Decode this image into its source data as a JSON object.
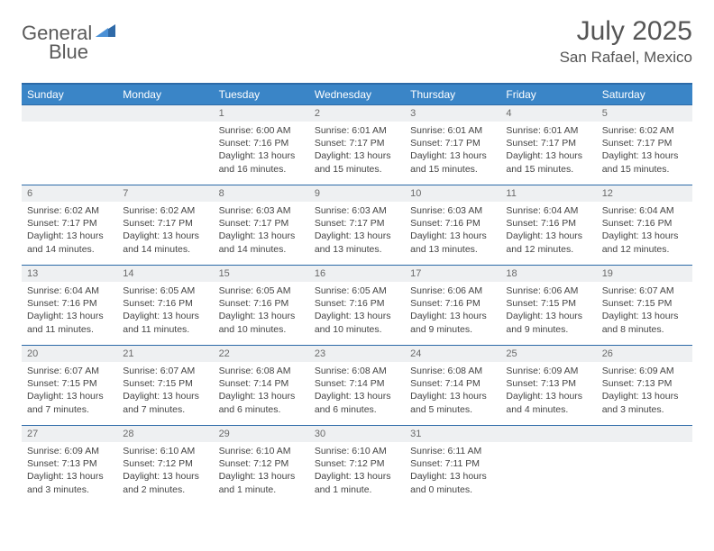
{
  "brand": {
    "part1": "General",
    "part2": "Blue"
  },
  "title": "July 2025",
  "location": "San Rafael, Mexico",
  "colors": {
    "header_bar": "#3a85c7",
    "rule": "#2c6aa8",
    "daynum_bg": "#eef0f2",
    "text": "#444444",
    "brand_gray": "#5a5a5a",
    "brand_blue": "#3a78b5"
  },
  "fonts": {
    "title_pt": 30,
    "location_pt": 17,
    "dow_pt": 12,
    "cell_pt": 10.5
  },
  "days_of_week": [
    "Sunday",
    "Monday",
    "Tuesday",
    "Wednesday",
    "Thursday",
    "Friday",
    "Saturday"
  ],
  "weeks": [
    [
      null,
      null,
      {
        "n": "1",
        "sunrise": "Sunrise: 6:00 AM",
        "sunset": "Sunset: 7:16 PM",
        "day": "Daylight: 13 hours and 16 minutes."
      },
      {
        "n": "2",
        "sunrise": "Sunrise: 6:01 AM",
        "sunset": "Sunset: 7:17 PM",
        "day": "Daylight: 13 hours and 15 minutes."
      },
      {
        "n": "3",
        "sunrise": "Sunrise: 6:01 AM",
        "sunset": "Sunset: 7:17 PM",
        "day": "Daylight: 13 hours and 15 minutes."
      },
      {
        "n": "4",
        "sunrise": "Sunrise: 6:01 AM",
        "sunset": "Sunset: 7:17 PM",
        "day": "Daylight: 13 hours and 15 minutes."
      },
      {
        "n": "5",
        "sunrise": "Sunrise: 6:02 AM",
        "sunset": "Sunset: 7:17 PM",
        "day": "Daylight: 13 hours and 15 minutes."
      }
    ],
    [
      {
        "n": "6",
        "sunrise": "Sunrise: 6:02 AM",
        "sunset": "Sunset: 7:17 PM",
        "day": "Daylight: 13 hours and 14 minutes."
      },
      {
        "n": "7",
        "sunrise": "Sunrise: 6:02 AM",
        "sunset": "Sunset: 7:17 PM",
        "day": "Daylight: 13 hours and 14 minutes."
      },
      {
        "n": "8",
        "sunrise": "Sunrise: 6:03 AM",
        "sunset": "Sunset: 7:17 PM",
        "day": "Daylight: 13 hours and 14 minutes."
      },
      {
        "n": "9",
        "sunrise": "Sunrise: 6:03 AM",
        "sunset": "Sunset: 7:17 PM",
        "day": "Daylight: 13 hours and 13 minutes."
      },
      {
        "n": "10",
        "sunrise": "Sunrise: 6:03 AM",
        "sunset": "Sunset: 7:16 PM",
        "day": "Daylight: 13 hours and 13 minutes."
      },
      {
        "n": "11",
        "sunrise": "Sunrise: 6:04 AM",
        "sunset": "Sunset: 7:16 PM",
        "day": "Daylight: 13 hours and 12 minutes."
      },
      {
        "n": "12",
        "sunrise": "Sunrise: 6:04 AM",
        "sunset": "Sunset: 7:16 PM",
        "day": "Daylight: 13 hours and 12 minutes."
      }
    ],
    [
      {
        "n": "13",
        "sunrise": "Sunrise: 6:04 AM",
        "sunset": "Sunset: 7:16 PM",
        "day": "Daylight: 13 hours and 11 minutes."
      },
      {
        "n": "14",
        "sunrise": "Sunrise: 6:05 AM",
        "sunset": "Sunset: 7:16 PM",
        "day": "Daylight: 13 hours and 11 minutes."
      },
      {
        "n": "15",
        "sunrise": "Sunrise: 6:05 AM",
        "sunset": "Sunset: 7:16 PM",
        "day": "Daylight: 13 hours and 10 minutes."
      },
      {
        "n": "16",
        "sunrise": "Sunrise: 6:05 AM",
        "sunset": "Sunset: 7:16 PM",
        "day": "Daylight: 13 hours and 10 minutes."
      },
      {
        "n": "17",
        "sunrise": "Sunrise: 6:06 AM",
        "sunset": "Sunset: 7:16 PM",
        "day": "Daylight: 13 hours and 9 minutes."
      },
      {
        "n": "18",
        "sunrise": "Sunrise: 6:06 AM",
        "sunset": "Sunset: 7:15 PM",
        "day": "Daylight: 13 hours and 9 minutes."
      },
      {
        "n": "19",
        "sunrise": "Sunrise: 6:07 AM",
        "sunset": "Sunset: 7:15 PM",
        "day": "Daylight: 13 hours and 8 minutes."
      }
    ],
    [
      {
        "n": "20",
        "sunrise": "Sunrise: 6:07 AM",
        "sunset": "Sunset: 7:15 PM",
        "day": "Daylight: 13 hours and 7 minutes."
      },
      {
        "n": "21",
        "sunrise": "Sunrise: 6:07 AM",
        "sunset": "Sunset: 7:15 PM",
        "day": "Daylight: 13 hours and 7 minutes."
      },
      {
        "n": "22",
        "sunrise": "Sunrise: 6:08 AM",
        "sunset": "Sunset: 7:14 PM",
        "day": "Daylight: 13 hours and 6 minutes."
      },
      {
        "n": "23",
        "sunrise": "Sunrise: 6:08 AM",
        "sunset": "Sunset: 7:14 PM",
        "day": "Daylight: 13 hours and 6 minutes."
      },
      {
        "n": "24",
        "sunrise": "Sunrise: 6:08 AM",
        "sunset": "Sunset: 7:14 PM",
        "day": "Daylight: 13 hours and 5 minutes."
      },
      {
        "n": "25",
        "sunrise": "Sunrise: 6:09 AM",
        "sunset": "Sunset: 7:13 PM",
        "day": "Daylight: 13 hours and 4 minutes."
      },
      {
        "n": "26",
        "sunrise": "Sunrise: 6:09 AM",
        "sunset": "Sunset: 7:13 PM",
        "day": "Daylight: 13 hours and 3 minutes."
      }
    ],
    [
      {
        "n": "27",
        "sunrise": "Sunrise: 6:09 AM",
        "sunset": "Sunset: 7:13 PM",
        "day": "Daylight: 13 hours and 3 minutes."
      },
      {
        "n": "28",
        "sunrise": "Sunrise: 6:10 AM",
        "sunset": "Sunset: 7:12 PM",
        "day": "Daylight: 13 hours and 2 minutes."
      },
      {
        "n": "29",
        "sunrise": "Sunrise: 6:10 AM",
        "sunset": "Sunset: 7:12 PM",
        "day": "Daylight: 13 hours and 1 minute."
      },
      {
        "n": "30",
        "sunrise": "Sunrise: 6:10 AM",
        "sunset": "Sunset: 7:12 PM",
        "day": "Daylight: 13 hours and 1 minute."
      },
      {
        "n": "31",
        "sunrise": "Sunrise: 6:11 AM",
        "sunset": "Sunset: 7:11 PM",
        "day": "Daylight: 13 hours and 0 minutes."
      },
      null,
      null
    ]
  ]
}
